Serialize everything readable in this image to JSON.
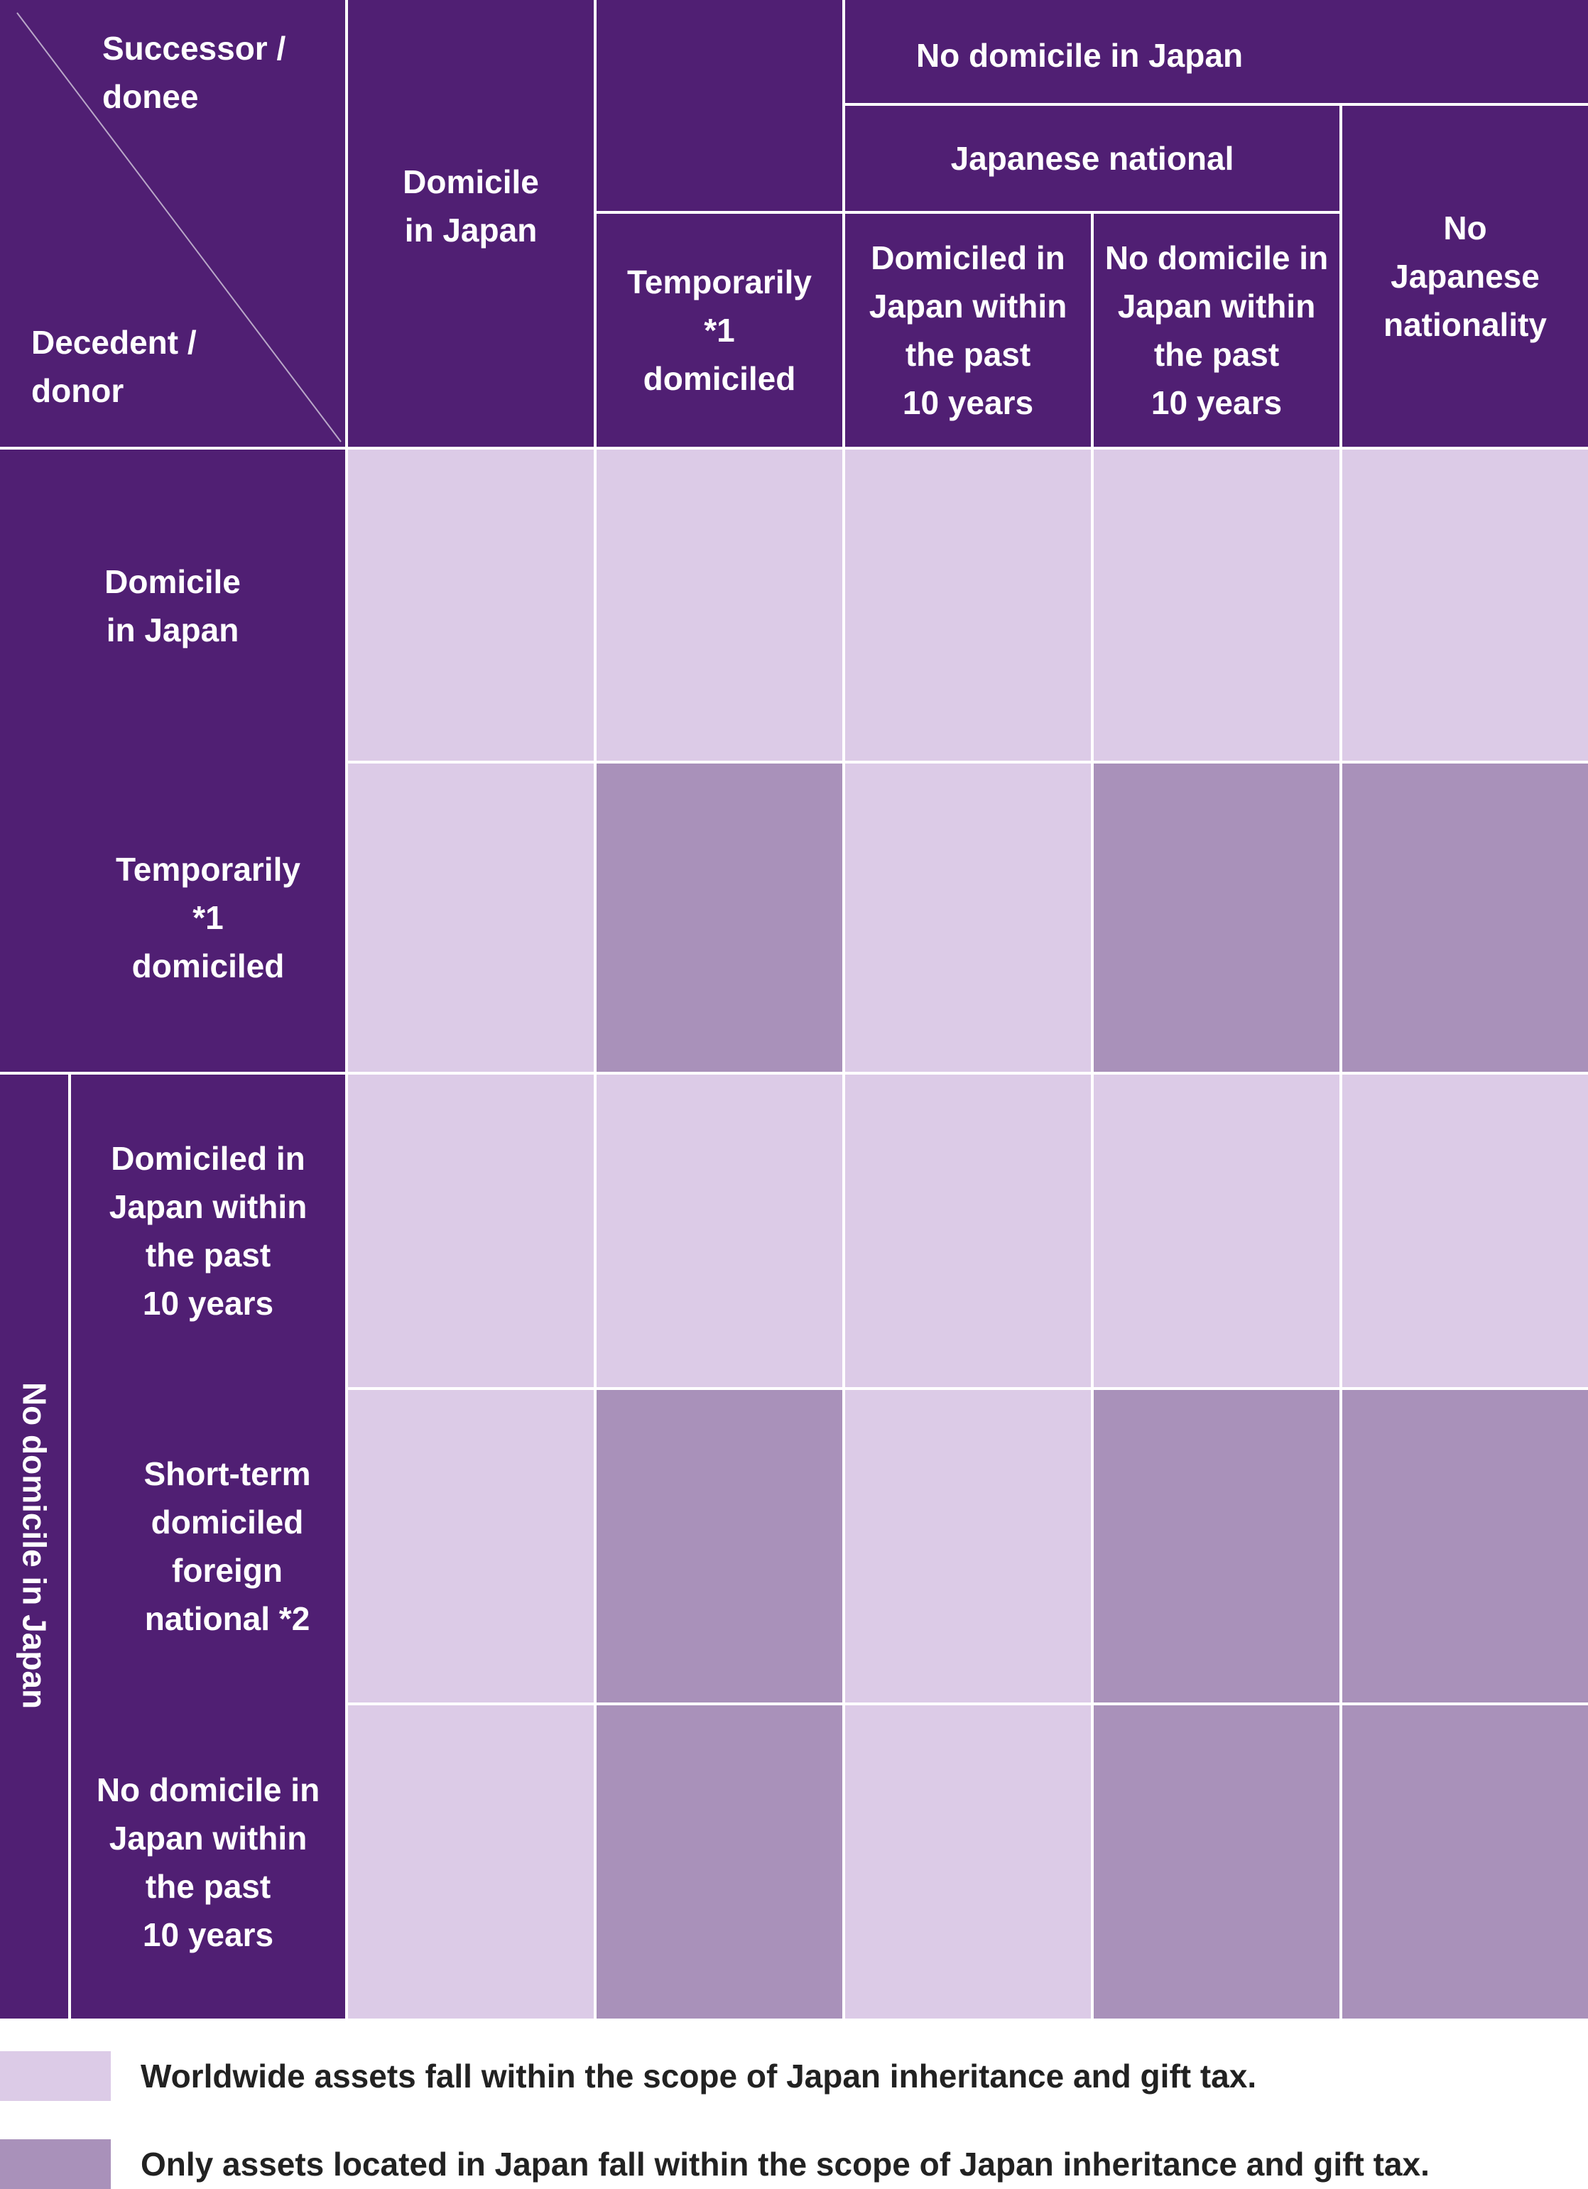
{
  "colors": {
    "header": "#501f73",
    "worldwide": "#dccbe7",
    "japan_only": "#a991ba"
  },
  "header": {
    "corner_successor": "Successor /\ndonee",
    "corner_decedent": "Decedent /\ndonor",
    "domicile_in_japan": "Domicile\nin Japan",
    "temporarily_domiciled": "Temporarily\n*1\ndomiciled",
    "no_domicile_in_japan": "No domicile in Japan",
    "japanese_national": "Japanese national",
    "domiciled_within_10": "Domiciled in\nJapan within\nthe past\n10 years",
    "no_domicile_within_10": "No domicile in\nJapan within\nthe past\n10 years",
    "no_japanese_nationality": "No\nJapanese\nnationality"
  },
  "rows": {
    "domicile_in_japan": "Domicile\nin Japan",
    "temporarily_domiciled": "Temporarily\n*1\ndomiciled",
    "no_domicile_group": "No domicile in Japan",
    "domiciled_within_10": "Domiciled in\nJapan within\nthe past\n10 years",
    "short_term_foreign": "Short-term\ndomiciled\nforeign\nnational *2",
    "no_domicile_within_10": "No domicile in\nJapan within\nthe past\n10 years"
  },
  "grid": [
    [
      "worldwide",
      "worldwide",
      "worldwide",
      "worldwide",
      "worldwide"
    ],
    [
      "worldwide",
      "japan_only",
      "worldwide",
      "japan_only",
      "japan_only"
    ],
    [
      "worldwide",
      "worldwide",
      "worldwide",
      "worldwide",
      "worldwide"
    ],
    [
      "worldwide",
      "japan_only",
      "worldwide",
      "japan_only",
      "japan_only"
    ],
    [
      "worldwide",
      "japan_only",
      "worldwide",
      "japan_only",
      "japan_only"
    ]
  ],
  "legend": {
    "worldwide": "Worldwide assets fall within the scope of Japan inheritance and gift tax.",
    "japan_only": "Only assets located in Japan fall within the scope of Japan inheritance and gift tax."
  }
}
